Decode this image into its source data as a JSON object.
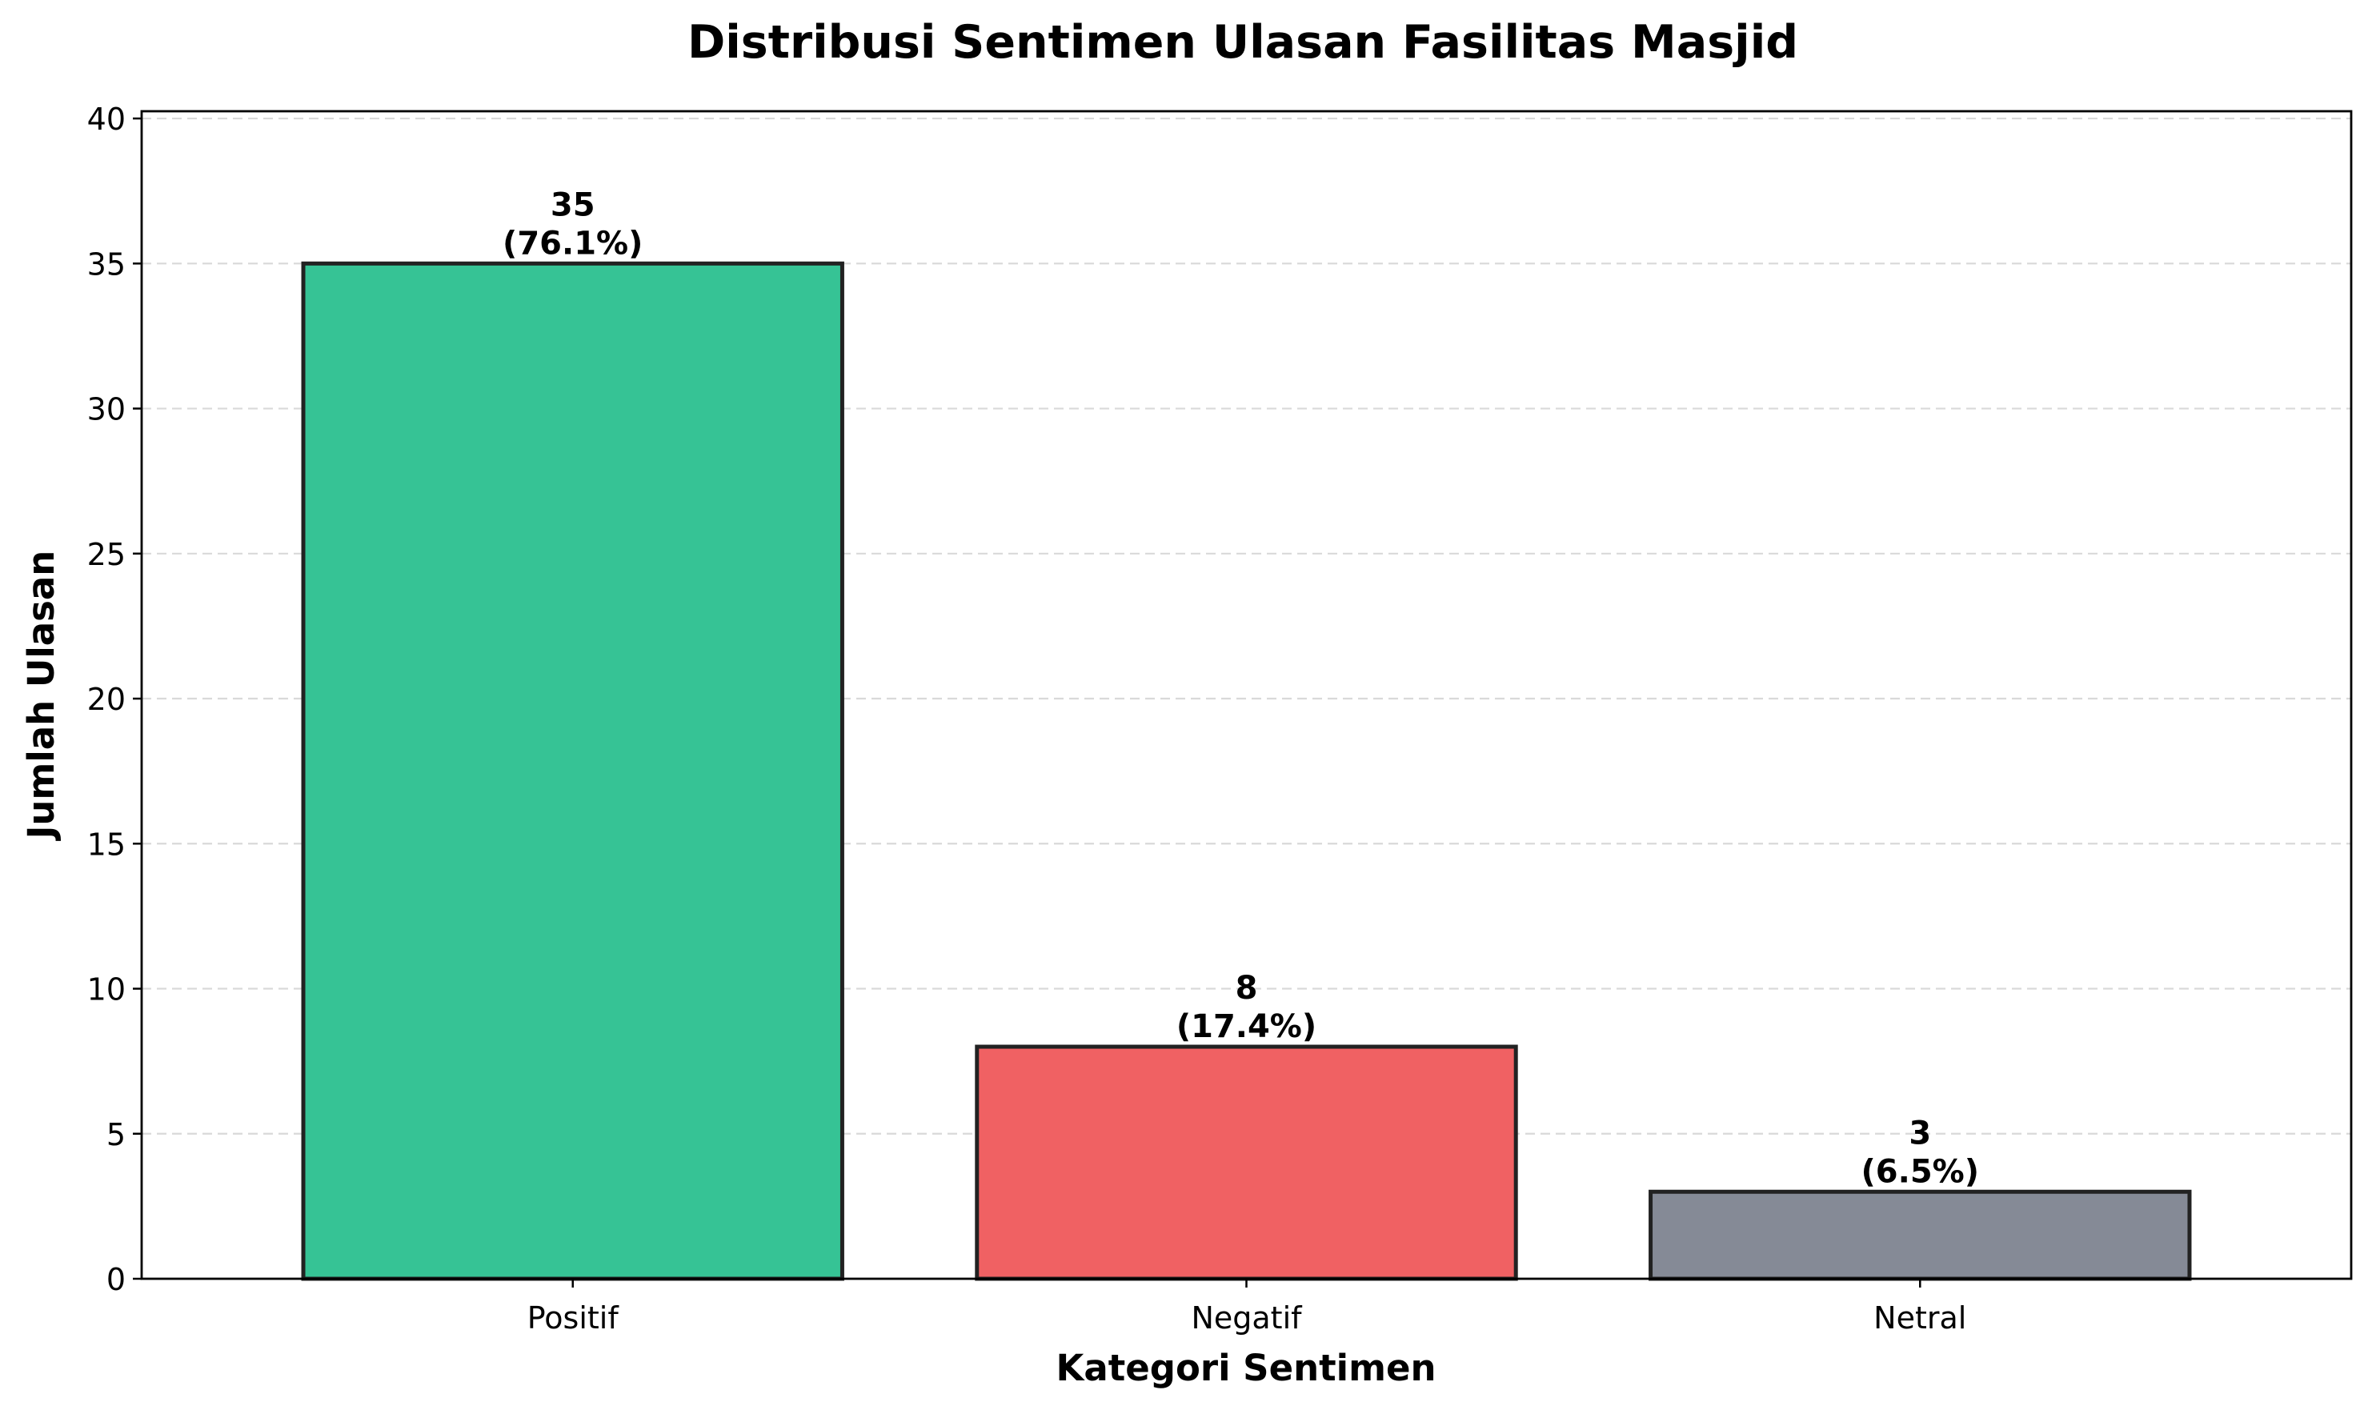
{
  "chart_data": {
    "type": "bar",
    "title": "Distribusi Sentimen Ulasan Fasilitas Masjid",
    "xlabel": "Kategori Sentimen",
    "ylabel": "Jumlah Ulasan",
    "categories": [
      "Positif",
      "Negatif",
      "Netral"
    ],
    "values": [
      35,
      8,
      3
    ],
    "value_labels": [
      "35",
      "8",
      "3"
    ],
    "percent_labels": [
      "(76.1%)",
      "(17.4%)",
      "(6.5%)"
    ],
    "colors": [
      "#36c395",
      "#f06163",
      "#858a96"
    ],
    "edge_color": "#222222",
    "ylim": [
      0,
      40.25
    ],
    "yticks": [
      0,
      5,
      10,
      15,
      20,
      25,
      30,
      35,
      40
    ],
    "ytick_labels": [
      "0",
      "5",
      "10",
      "15",
      "20",
      "25",
      "30",
      "35",
      "40"
    ],
    "grid": "y-dashed",
    "legend": "none"
  }
}
